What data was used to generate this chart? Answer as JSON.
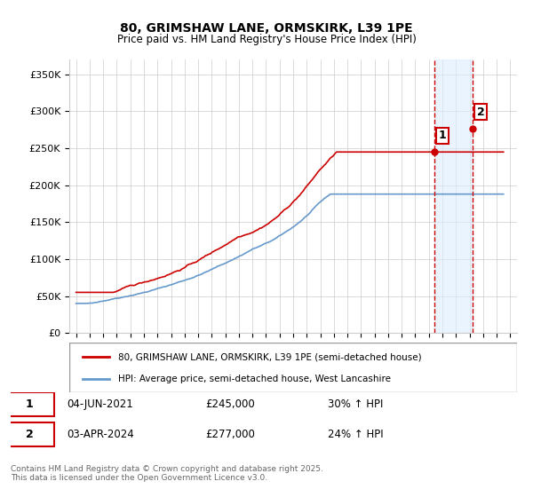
{
  "title": "80, GRIMSHAW LANE, ORMSKIRK, L39 1PE",
  "subtitle": "Price paid vs. HM Land Registry's House Price Index (HPI)",
  "ylabel_prefix": "£",
  "ylim": [
    0,
    370000
  ],
  "yticks": [
    0,
    50000,
    100000,
    150000,
    200000,
    250000,
    300000,
    350000
  ],
  "ytick_labels": [
    "£0",
    "£50K",
    "£100K",
    "£150K",
    "£200K",
    "£250K",
    "£300K",
    "£350K"
  ],
  "xstart_year": 1995,
  "xend_year": 2027,
  "vline1_year": 2021.42,
  "vline2_year": 2024.25,
  "marker1_price": 245000,
  "marker1_hpi": 188000,
  "marker2_price": 277000,
  "marker2_hpi": 223000,
  "legend_line1": "80, GRIMSHAW LANE, ORMSKIRK, L39 1PE (semi-detached house)",
  "legend_line2": "HPI: Average price, semi-detached house, West Lancashire",
  "table_row1": [
    "1",
    "04-JUN-2021",
    "£245,000",
    "30% ↑ HPI"
  ],
  "table_row2": [
    "2",
    "03-APR-2024",
    "£277,000",
    "24% ↑ HPI"
  ],
  "footnote": "Contains HM Land Registry data © Crown copyright and database right 2025.\nThis data is licensed under the Open Government Licence v3.0.",
  "line_color_red": "#cc0000",
  "line_color_blue": "#6699cc",
  "vline_color": "#cc0000",
  "shaded_color": "#ddeeff",
  "background_color": "#ffffff",
  "grid_color": "#cccccc"
}
